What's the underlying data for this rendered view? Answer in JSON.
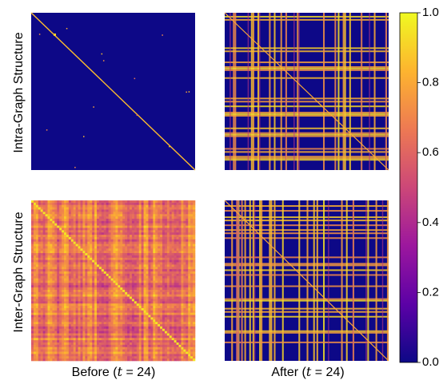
{
  "chart_data": {
    "type": "heatmap",
    "layout": "2x2 grid with shared colorbar",
    "row_labels": [
      "Intra-Graph Structure",
      "Inter-Graph Structure"
    ],
    "column_labels": [
      {
        "prefix": "Before (",
        "var": "t",
        "eq": " = ",
        "value": "24",
        "suffix": ")"
      },
      {
        "prefix": "After (",
        "var": "t",
        "eq": " = ",
        "value": "24",
        "suffix": ")"
      }
    ],
    "colormap": [
      "#0d0887",
      "#5c01a6",
      "#9c179e",
      "#cc4778",
      "#ed7953",
      "#fdb42f",
      "#f0f921"
    ],
    "colorbar": {
      "range": [
        0.0,
        1.0
      ],
      "ticks": [
        0.0,
        0.2,
        0.4,
        0.6,
        0.8,
        1.0
      ],
      "tick_labels": [
        "0.0",
        "0.2",
        "0.4",
        "0.6",
        "0.8",
        "1.0"
      ]
    },
    "panels": [
      {
        "row": 0,
        "col": 0,
        "pattern": "diagonal-sparse",
        "background_value": 0.0,
        "diagonal_value": 0.85,
        "sparse_points": 14
      },
      {
        "row": 0,
        "col": 1,
        "pattern": "block-stripes",
        "background_value": 0.0,
        "stripe_value": 0.9,
        "diagonal_value": 0.8
      },
      {
        "row": 1,
        "col": 0,
        "pattern": "dense-noise",
        "value_range": [
          0.4,
          0.95
        ]
      },
      {
        "row": 1,
        "col": 1,
        "pattern": "block-stripes",
        "background_value": 0.0,
        "stripe_value": 0.9,
        "diagonal_value": 0.8
      }
    ]
  }
}
